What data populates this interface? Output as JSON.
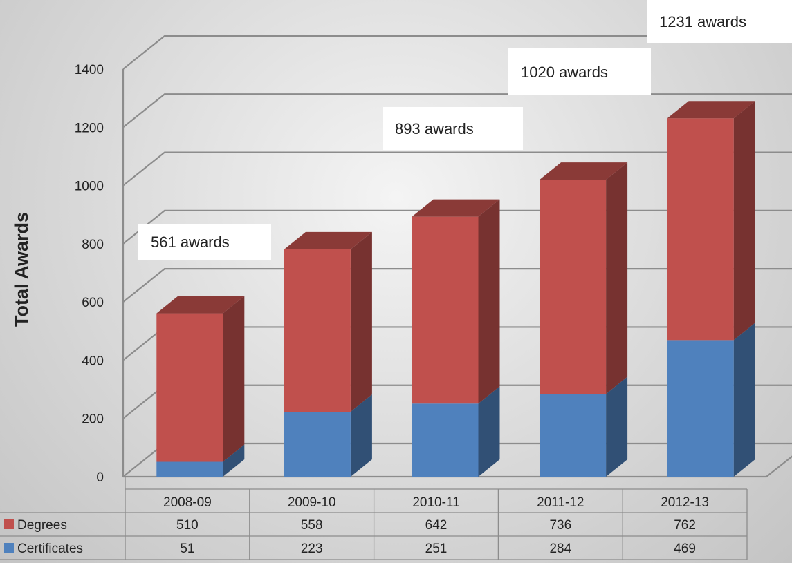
{
  "chart_data": {
    "type": "bar",
    "stacked": true,
    "three_d": true,
    "ylabel": "Total Awards",
    "ylim": [
      0,
      1400
    ],
    "yticks": [
      0,
      200,
      400,
      600,
      800,
      1000,
      1200,
      1400
    ],
    "grid": true,
    "categories": [
      "2008-09",
      "2009-10",
      "2010-11",
      "2011-12",
      "2012-13"
    ],
    "series": [
      {
        "name": "Certificates",
        "color": "#4f81bd",
        "values": [
          51,
          223,
          251,
          284,
          469
        ]
      },
      {
        "name": "Degrees",
        "color": "#c0504d",
        "values": [
          510,
          558,
          642,
          736,
          762
        ]
      }
    ],
    "data_table": true,
    "annotations": [
      {
        "category": "2008-09",
        "text": "561 awards"
      },
      {
        "category": "2010-11",
        "text": "893 awards"
      },
      {
        "category": "2011-12",
        "text": "1020 awards"
      },
      {
        "category": "2012-13",
        "text": "1231 awards"
      }
    ]
  }
}
